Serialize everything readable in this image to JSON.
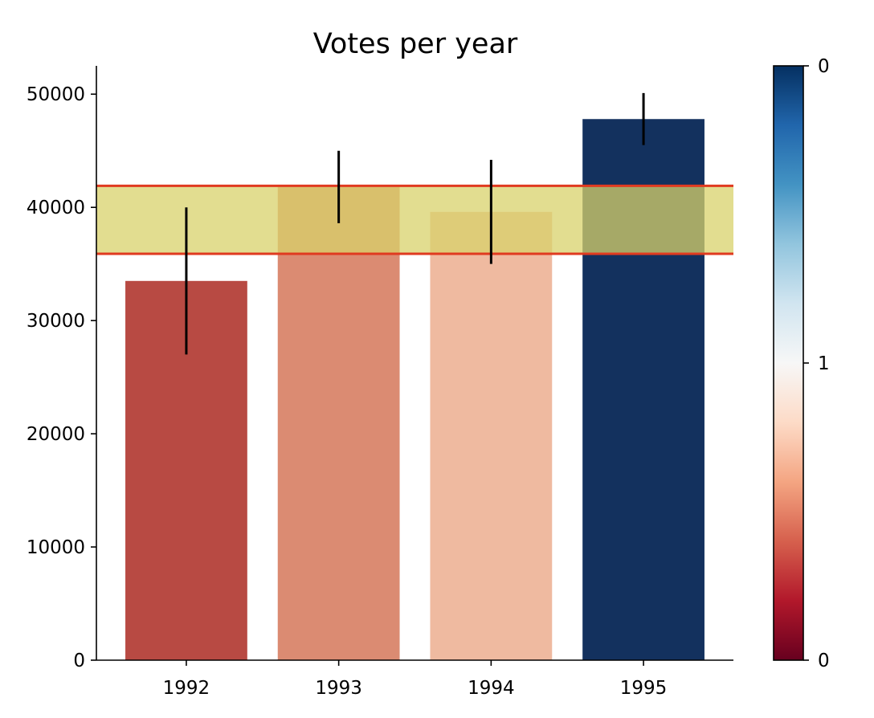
{
  "chart_data": {
    "type": "bar",
    "title": "Votes per year",
    "xlabel": "",
    "ylabel": "",
    "categories": [
      "1992",
      "1993",
      "1994",
      "1995"
    ],
    "values": [
      33500,
      41800,
      39600,
      47800
    ],
    "errors": [
      6500,
      3200,
      4600,
      2300
    ],
    "bar_colors": [
      "#b84a43",
      "#db8b72",
      "#efbaa0",
      "#13315e"
    ],
    "band": {
      "low": 35900,
      "high": 41900,
      "fill": "#d8d26b",
      "edge": "#e03a20"
    },
    "ylim": [
      0,
      52500
    ],
    "yticks": [
      0,
      10000,
      20000,
      30000,
      40000,
      50000
    ],
    "grid": false,
    "colorbar": {
      "ticks": [
        {
          "label": "0",
          "pos": 0
        },
        {
          "label": "1",
          "pos": 0.5
        },
        {
          "label": "0",
          "pos": 1
        }
      ],
      "stops": [
        "#67001f",
        "#b2182b",
        "#d6604d",
        "#f4a582",
        "#fddbc7",
        "#f7f7f7",
        "#d1e5f0",
        "#92c5de",
        "#4393c3",
        "#2166ac",
        "#053061"
      ]
    }
  }
}
